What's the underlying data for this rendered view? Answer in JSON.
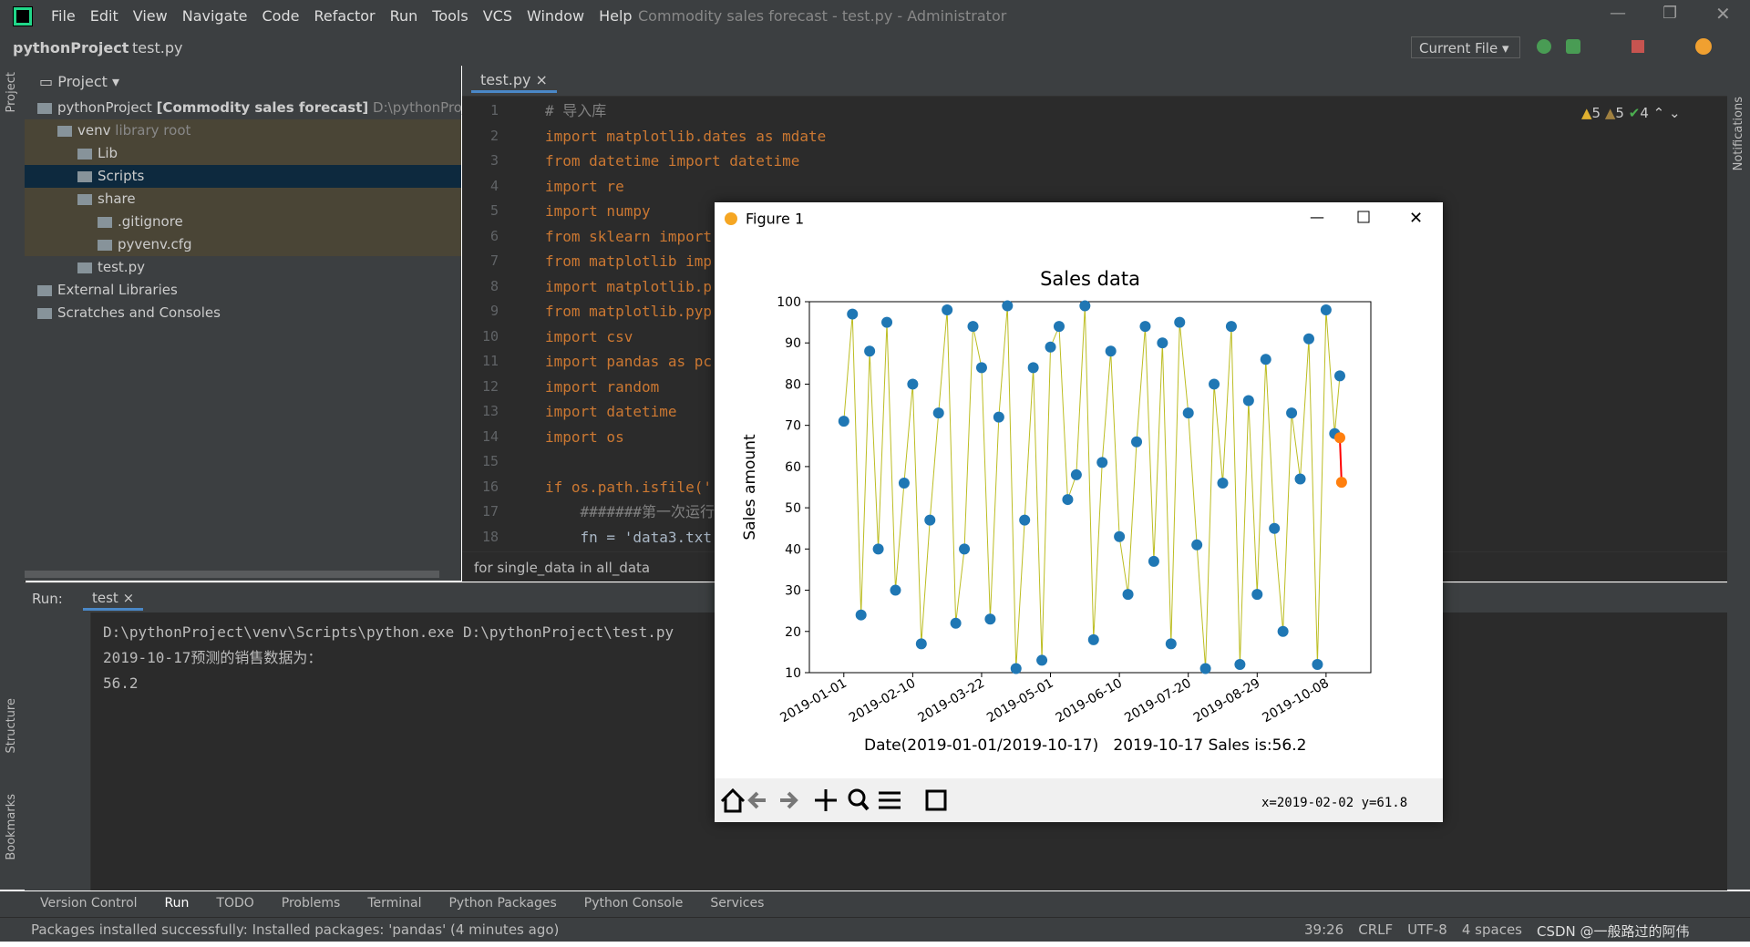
{
  "window": {
    "title": "Commodity sales forecast - test.py - Administrator",
    "menu": [
      "File",
      "Edit",
      "View",
      "Navigate",
      "Code",
      "Refactor",
      "Run",
      "Tools",
      "VCS",
      "Window",
      "Help"
    ]
  },
  "navbar": {
    "project": "pythonProject",
    "file": "test.py",
    "run_config": "Current File"
  },
  "side_labels": {
    "project": "Project",
    "structure": "Structure",
    "bookmarks": "Bookmarks",
    "notifications": "Notifications"
  },
  "project_panel": {
    "title": "Project",
    "tree": [
      {
        "label": "pythonProject",
        "bold": "[Commodity sales forecast]",
        "hint": "D:\\pythonProj"
      },
      {
        "label": "venv",
        "hint": "library root"
      },
      {
        "label": "Lib"
      },
      {
        "label": "Scripts"
      },
      {
        "label": "share"
      },
      {
        "label": ".gitignore"
      },
      {
        "label": "pyvenv.cfg"
      },
      {
        "label": "test.py"
      },
      {
        "label": "External Libraries"
      },
      {
        "label": "Scratches and Consoles"
      }
    ]
  },
  "editor": {
    "tab": "test.py",
    "warnings": "5",
    "weak_warnings": "5",
    "ok": "4",
    "line_numbers": [
      1,
      2,
      3,
      4,
      5,
      6,
      7,
      8,
      9,
      10,
      11,
      12,
      13,
      14,
      15,
      16,
      17,
      18
    ],
    "code": [
      {
        "line": 1,
        "text": "# 导入库"
      },
      {
        "line": 2,
        "text": "import matplotlib.dates as mdate"
      },
      {
        "line": 3,
        "text": "from datetime import datetime"
      },
      {
        "line": 4,
        "text": "import re"
      },
      {
        "line": 5,
        "text": "import numpy"
      },
      {
        "line": 6,
        "text": "from sklearn import"
      },
      {
        "line": 7,
        "text": "from matplotlib imp"
      },
      {
        "line": 8,
        "text": "import matplotlib.p"
      },
      {
        "line": 9,
        "text": "from matplotlib.pyp"
      },
      {
        "line": 10,
        "text": "import csv"
      },
      {
        "line": 11,
        "text": "import pandas as pc"
      },
      {
        "line": 12,
        "text": "import random"
      },
      {
        "line": 13,
        "text": "import datetime"
      },
      {
        "line": 14,
        "text": "import os"
      },
      {
        "line": 16,
        "text": "if os.path.isfile('"
      },
      {
        "line": 17,
        "text": "    #######第一次运行"
      },
      {
        "line": 18,
        "text": "    fn = 'data3.txt"
      }
    ],
    "breadcrumb": "for single_data in all_data"
  },
  "run_panel": {
    "label": "Run:",
    "tab": "test",
    "output": [
      "D:\\pythonProject\\venv\\Scripts\\python.exe D:\\pythonProject\\test.py",
      "2019-10-17预测的销售数据为：",
      "56.2"
    ]
  },
  "bottom_tabs": [
    "Version Control",
    "Run",
    "TODO",
    "Problems",
    "Terminal",
    "Python Packages",
    "Python Console",
    "Services"
  ],
  "status_bar": {
    "message": "Packages installed successfully: Installed packages: 'pandas' (4 minutes ago)",
    "position": "39:26",
    "line_sep": "CRLF",
    "encoding": "UTF-8",
    "indent": "4 spaces",
    "watermark": "CSDN @一般路过的阿伟"
  },
  "figure": {
    "window_title": "Figure 1",
    "coords": "x=2019-02-02 y=61.8",
    "chart_data": {
      "type": "line",
      "title": "Sales data",
      "y_label": "Sales amount",
      "x_label": "Date(2019-01-01/2019-10-17)   2019-10-17 Sales is:56.2",
      "xlim": [
        "2018-12-12",
        "2019-11-03"
      ],
      "xticks": [
        "2019-01-01",
        "2019-02-10",
        "2019-03-22",
        "2019-05-01",
        "2019-06-10",
        "2019-07-20",
        "2019-08-29",
        "2019-10-08"
      ],
      "ylim": [
        10,
        100
      ],
      "yticks": [
        10,
        20,
        30,
        40,
        50,
        60,
        70,
        80,
        90,
        100
      ],
      "series": [
        {
          "color": "#1f77b4",
          "line_color": "#bcbd22",
          "x": [
            "2019-01-01",
            "2019-01-06",
            "2019-01-11",
            "2019-01-16",
            "2019-01-21",
            "2019-01-26",
            "2019-01-31",
            "2019-02-05",
            "2019-02-10",
            "2019-02-15",
            "2019-02-20",
            "2019-02-25",
            "2019-03-02",
            "2019-03-07",
            "2019-03-12",
            "2019-03-17",
            "2019-03-22",
            "2019-03-27",
            "2019-04-01",
            "2019-04-06",
            "2019-04-11",
            "2019-04-16",
            "2019-04-21",
            "2019-04-26",
            "2019-05-01",
            "2019-05-06",
            "2019-05-11",
            "2019-05-16",
            "2019-05-21",
            "2019-05-26",
            "2019-05-31",
            "2019-06-05",
            "2019-06-10",
            "2019-06-15",
            "2019-06-20",
            "2019-06-25",
            "2019-06-30",
            "2019-07-05",
            "2019-07-10",
            "2019-07-15",
            "2019-07-20",
            "2019-07-25",
            "2019-07-30",
            "2019-08-04",
            "2019-08-09",
            "2019-08-14",
            "2019-08-19",
            "2019-08-24",
            "2019-08-29",
            "2019-09-03",
            "2019-09-08",
            "2019-09-13",
            "2019-09-18",
            "2019-09-23",
            "2019-09-28",
            "2019-10-03",
            "2019-10-08",
            "2019-10-13",
            "2019-10-16"
          ],
          "values": [
            71,
            97,
            24,
            88,
            40,
            95,
            30,
            56,
            80,
            17,
            47,
            73,
            98,
            22,
            40,
            94,
            84,
            23,
            72,
            99,
            11,
            47,
            84,
            13,
            89,
            94,
            52,
            58,
            99,
            18,
            61,
            88,
            43,
            29,
            66,
            94,
            37,
            90,
            17,
            95,
            73,
            41,
            11,
            80,
            56,
            94,
            12,
            76,
            29,
            86,
            45,
            20,
            73,
            57,
            91,
            12,
            98,
            68,
            82
          ]
        },
        {
          "color": "#ff7f0e",
          "line_color": "#ff0000",
          "x": [
            "2019-10-16",
            "2019-10-17"
          ],
          "values": [
            67,
            56.2
          ]
        }
      ]
    }
  }
}
